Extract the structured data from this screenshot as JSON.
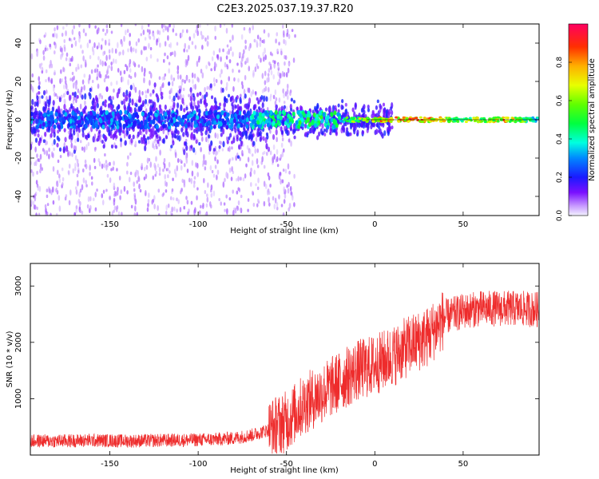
{
  "figure": {
    "title": "C2E3.2025.037.19.37.R20"
  },
  "chart_data": [
    {
      "type": "heatmap",
      "xlabel": "Height of straight line (km)",
      "ylabel": "Frequency (Hz)",
      "xlim": [
        -195,
        93
      ],
      "ylim": [
        -50,
        50
      ],
      "xticks": [
        -150,
        -100,
        -50,
        0,
        50
      ],
      "yticks": [
        -40,
        -20,
        0,
        20,
        40
      ],
      "colorbar": {
        "label": "Normalized spectral amplitude",
        "range": [
          0,
          1
        ],
        "ticks": [
          0.0,
          0.2,
          0.4,
          0.6,
          0.8
        ],
        "colormap": "rainbow (violet to red)"
      },
      "grid": false,
      "description_points": [
        {
          "x": -190,
          "y": 0,
          "amplitude": 0.3
        },
        {
          "x": -150,
          "y": 0,
          "amplitude": 0.3
        },
        {
          "x": -100,
          "y": 0,
          "amplitude": 0.3
        },
        {
          "x": -60,
          "y": 2,
          "amplitude": 0.45
        },
        {
          "x": -40,
          "y": 3,
          "amplitude": 0.5
        },
        {
          "x": -20,
          "y": -2,
          "amplitude": 0.5
        },
        {
          "x": 0,
          "y": 0,
          "amplitude": 0.8
        },
        {
          "x": 25,
          "y": 0,
          "amplitude": 0.9
        },
        {
          "x": 50,
          "y": 0,
          "amplitude": 0.6
        },
        {
          "x": 75,
          "y": 0,
          "amplitude": 0.85
        },
        {
          "x": 90,
          "y": -1,
          "amplitude": 0.4
        }
      ]
    },
    {
      "type": "line",
      "xlabel": "Height of straight line (km)",
      "ylabel": "SNR (10 * v/v)",
      "xlim": [
        -195,
        93
      ],
      "ylim": [
        0,
        3400
      ],
      "xticks": [
        -150,
        -100,
        -50,
        0,
        50
      ],
      "yticks": [
        1000,
        2000,
        3000
      ],
      "grid": false,
      "series": [
        {
          "color": "#ee2c2c",
          "x": [
            -195,
            -180,
            -160,
            -140,
            -120,
            -100,
            -90,
            -80,
            -70,
            -60,
            -50,
            -40,
            -30,
            -20,
            -10,
            0,
            10,
            20,
            30,
            40,
            50,
            60,
            70,
            80,
            93
          ],
          "y": [
            250,
            250,
            260,
            250,
            260,
            270,
            280,
            300,
            350,
            450,
            600,
            900,
            1100,
            1300,
            1500,
            1600,
            1750,
            1950,
            2100,
            2450,
            2550,
            2600,
            2600,
            2600,
            2580
          ]
        }
      ]
    }
  ]
}
